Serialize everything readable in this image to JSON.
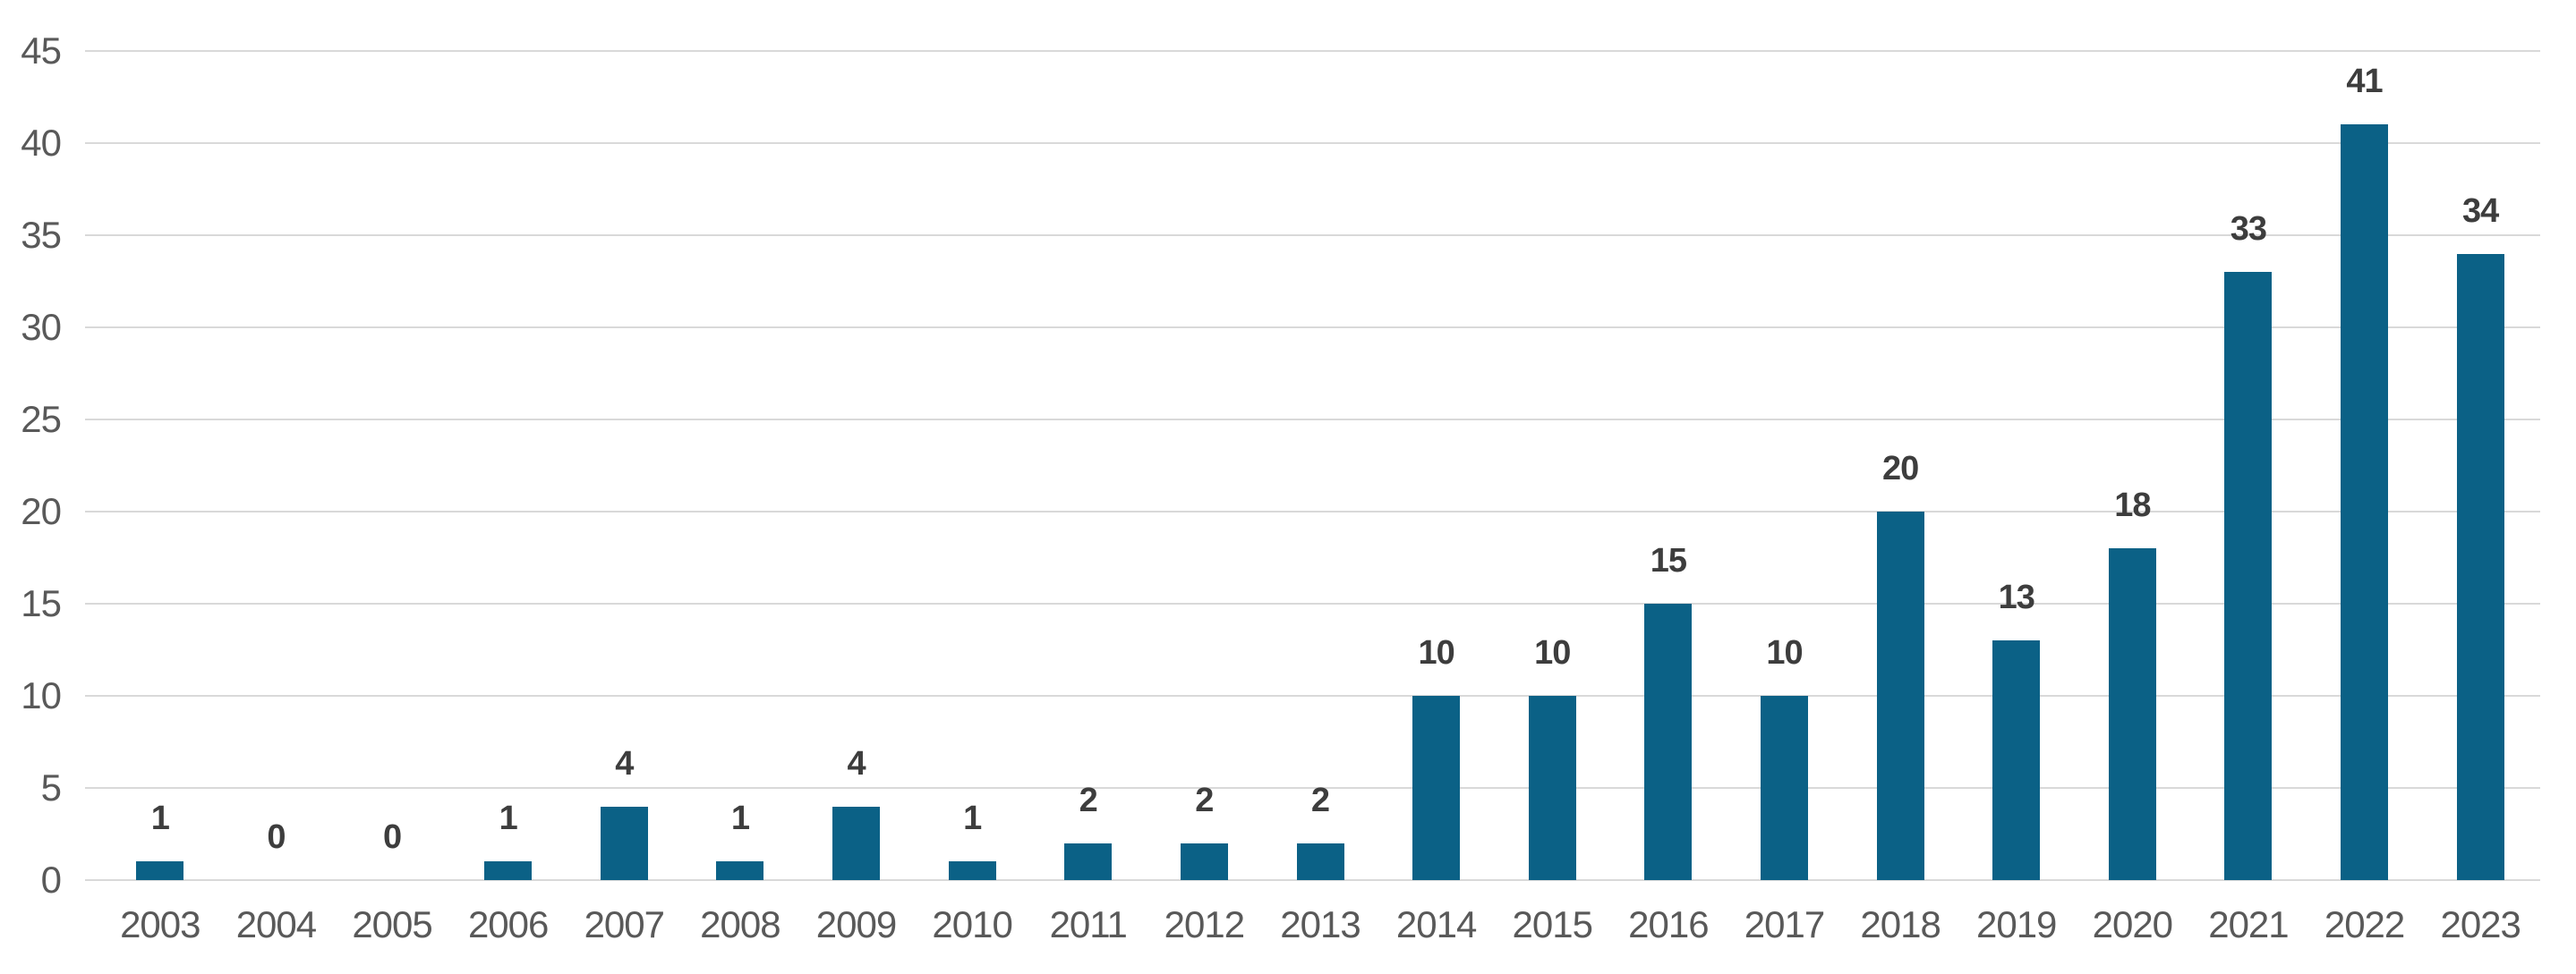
{
  "chart_data": {
    "type": "bar",
    "title": "",
    "xlabel": "",
    "ylabel": "",
    "categories": [
      "2003",
      "2004",
      "2005",
      "2006",
      "2007",
      "2008",
      "2009",
      "2010",
      "2011",
      "2012",
      "2013",
      "2014",
      "2015",
      "2016",
      "2017",
      "2018",
      "2019",
      "2020",
      "2021",
      "2022",
      "2023"
    ],
    "values": [
      1,
      0,
      0,
      1,
      4,
      1,
      4,
      1,
      2,
      2,
      2,
      10,
      10,
      15,
      10,
      20,
      13,
      18,
      33,
      41,
      34
    ],
    "data_labels": true,
    "ylim": [
      0,
      45
    ],
    "yticks": [
      0,
      5,
      10,
      15,
      20,
      25,
      30,
      35,
      40,
      45
    ],
    "grid": true,
    "legend": false,
    "colors": {
      "bar": "#0b6186",
      "gridline": "#d9d9d9",
      "tick_label": "#595959",
      "data_label": "#3d3d3d",
      "background": "#ffffff"
    }
  }
}
